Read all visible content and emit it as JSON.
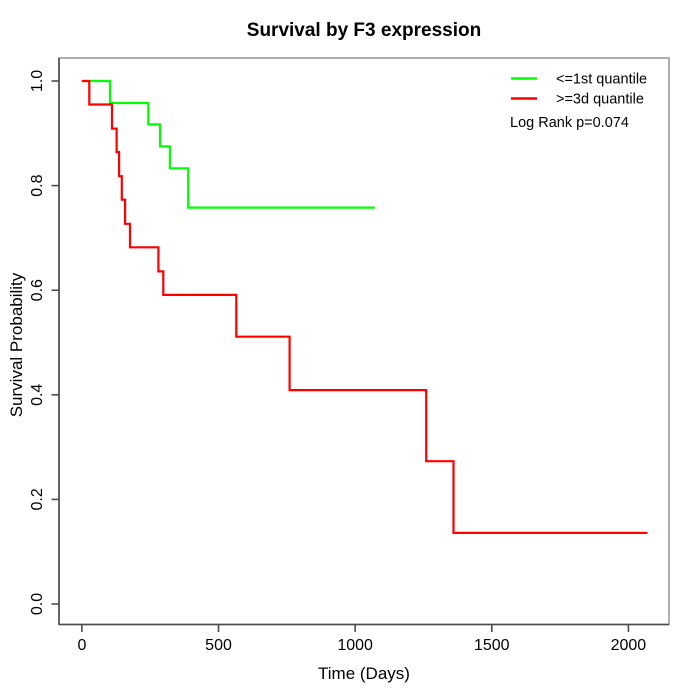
{
  "chart_data": {
    "type": "line",
    "subtype": "kaplan-meier-step",
    "title": "Survival by F3 expression",
    "xlabel": "Time (Days)",
    "ylabel": "Survival Probability",
    "xlim": [
      0,
      2100
    ],
    "ylim": [
      0.0,
      1.0
    ],
    "x_ticks": [
      0,
      500,
      1000,
      1500,
      2000
    ],
    "x_tick_labels": [
      "0",
      "500",
      "1000",
      "1500",
      "2000"
    ],
    "y_ticks": [
      0.0,
      0.2,
      0.4,
      0.6,
      0.8,
      1.0
    ],
    "y_tick_labels": [
      "0.0",
      "0.2",
      "0.4",
      "0.6",
      "0.8",
      "1.0"
    ],
    "grid": false,
    "legend_position": "top-right",
    "annotation": "Log Rank p=0.074",
    "series": [
      {
        "name": "<=1st quantile",
        "color": "#00ff00",
        "steps": [
          [
            0,
            1.0
          ],
          [
            103,
            0.958
          ],
          [
            243,
            0.917
          ],
          [
            286,
            0.875
          ],
          [
            322,
            0.833
          ],
          [
            389,
            0.758
          ]
        ],
        "end_time": 1072
      },
      {
        "name": ">=3d quantile",
        "color": "#ff0000",
        "steps": [
          [
            0,
            1.0
          ],
          [
            27,
            0.955
          ],
          [
            110,
            0.909
          ],
          [
            127,
            0.864
          ],
          [
            136,
            0.818
          ],
          [
            146,
            0.773
          ],
          [
            158,
            0.727
          ],
          [
            176,
            0.682
          ],
          [
            280,
            0.636
          ],
          [
            298,
            0.591
          ],
          [
            565,
            0.511
          ],
          [
            760,
            0.409
          ],
          [
            1260,
            0.273
          ],
          [
            1360,
            0.136
          ]
        ],
        "end_time": 2070
      }
    ]
  }
}
